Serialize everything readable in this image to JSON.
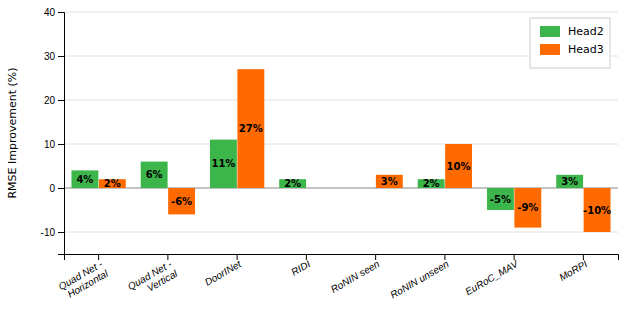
{
  "chart_data": {
    "type": "bar",
    "categories": [
      "Quad Net -\nHorizontal",
      "Quad Net -\nVertical",
      "DoorINet",
      "RIDI",
      "RoNIN seen",
      "RoNIN unseen",
      "EuRoC_MAV",
      "MoRPI"
    ],
    "series": [
      {
        "name": "Head2",
        "color": "#3cb54a",
        "values": [
          4,
          6,
          11,
          2,
          0,
          2,
          -5,
          3
        ],
        "value_labels": [
          "4%",
          "6%",
          "11%",
          "2%",
          null,
          "2%",
          "-5%",
          "3%"
        ]
      },
      {
        "name": "Head3",
        "color": "#ff6a00",
        "values": [
          2,
          -6,
          27,
          0,
          3,
          10,
          -9,
          -10
        ],
        "value_labels": [
          "2%",
          "-6%",
          "27%",
          null,
          "3%",
          "10%",
          "-9%",
          "-10%"
        ]
      }
    ],
    "y_label": "RMSE Improvement (%)",
    "ylim": [
      -15,
      40
    ],
    "yticks": [
      -10,
      0,
      10,
      20,
      30,
      40
    ],
    "grid": true,
    "legend": "upper right",
    "data_labels": true
  }
}
